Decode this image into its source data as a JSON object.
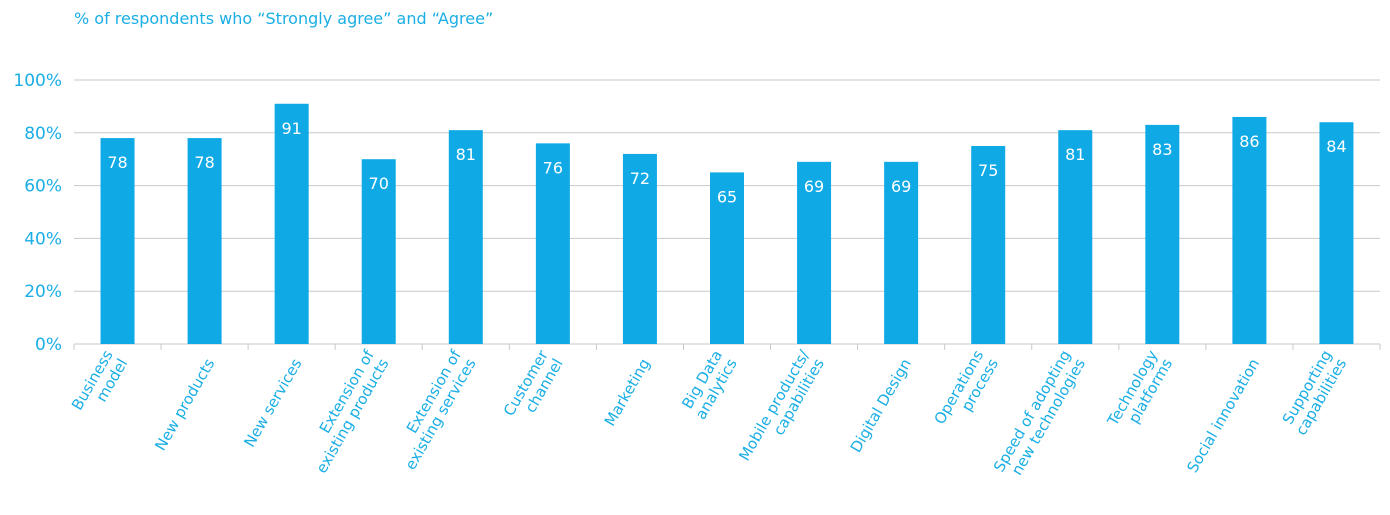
{
  "chart_data": {
    "type": "bar",
    "subtitle": "% of respondents who “Strongly agree” and “Agree”",
    "categories": [
      [
        "Business",
        "model"
      ],
      [
        "New products"
      ],
      [
        "New services"
      ],
      [
        "Extension of",
        "existing products"
      ],
      [
        "Extension of",
        "existing services"
      ],
      [
        "Customer",
        "channel"
      ],
      [
        "Marketing"
      ],
      [
        "Big Data",
        "analytics"
      ],
      [
        "Mobile products/",
        "capabilities"
      ],
      [
        "Digital Design"
      ],
      [
        "Operations",
        "process"
      ],
      [
        "Speed of adopting",
        "new technologies"
      ],
      [
        "Technology",
        "platforms"
      ],
      [
        "Social innovation"
      ],
      [
        "Supporting",
        "capabilities"
      ]
    ],
    "values": [
      78,
      78,
      91,
      70,
      81,
      76,
      72,
      65,
      69,
      69,
      75,
      81,
      83,
      86,
      84
    ],
    "yticks": [
      "0%",
      "20%",
      "40%",
      "60%",
      "80%",
      "100%"
    ],
    "ylim": [
      0,
      100
    ],
    "bar_color": "#0fa9e6",
    "grid": true
  }
}
